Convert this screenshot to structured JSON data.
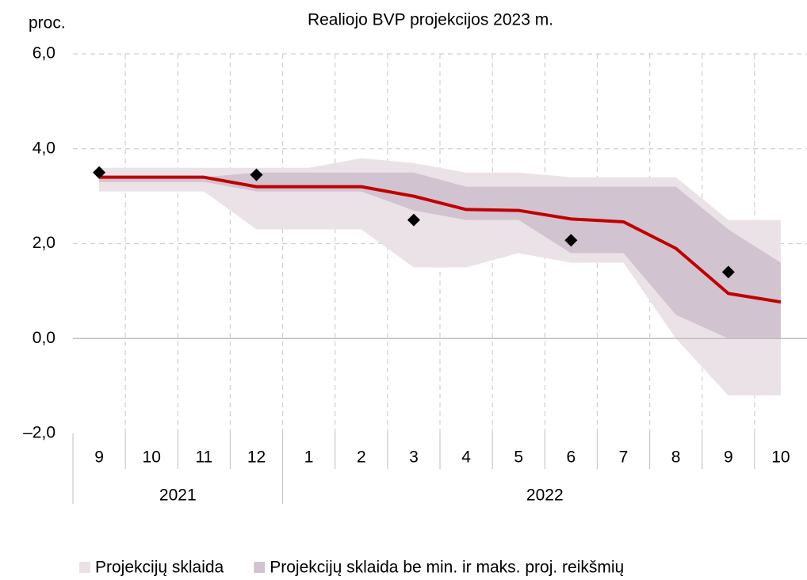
{
  "chart_data": {
    "type": "fan",
    "title": "Realiojo BVP projekcijos 2023 m.",
    "y_label": "proc.",
    "categories": [
      "9",
      "10",
      "11",
      "12",
      "1",
      "2",
      "3",
      "4",
      "5",
      "6",
      "7",
      "8",
      "9",
      "10"
    ],
    "groups": [
      {
        "label": "2021",
        "span": 4
      },
      {
        "label": "2022",
        "span": 10
      }
    ],
    "series": [
      {
        "name": "Projekcijų sklaida",
        "color": "#ebe2e7",
        "low": [
          3.1,
          3.1,
          3.1,
          2.3,
          2.3,
          2.3,
          1.5,
          1.5,
          1.8,
          1.6,
          1.6,
          0.0,
          -1.2,
          -1.2
        ],
        "high": [
          3.6,
          3.6,
          3.6,
          3.6,
          3.6,
          3.8,
          3.7,
          3.5,
          3.5,
          3.4,
          3.4,
          3.4,
          2.5,
          2.5
        ]
      },
      {
        "name": "Projekcijų sklaida be min. ir maks. proj. reikšmių",
        "color": "#d2c3d0",
        "low": [
          3.3,
          3.3,
          3.3,
          3.1,
          3.1,
          3.1,
          2.7,
          2.5,
          2.5,
          1.8,
          1.8,
          0.5,
          0.0,
          0.0
        ],
        "high": [
          3.4,
          3.4,
          3.4,
          3.5,
          3.5,
          3.5,
          3.5,
          3.2,
          3.2,
          3.2,
          3.2,
          3.2,
          2.3,
          1.6
        ]
      }
    ],
    "line": {
      "color": "#c00000",
      "values": [
        3.4,
        3.4,
        3.4,
        3.2,
        3.2,
        3.2,
        3.0,
        2.72,
        2.7,
        2.52,
        2.46,
        1.9,
        0.95,
        0.77
      ]
    },
    "points": {
      "color": "#000000",
      "values": [
        3.5,
        null,
        null,
        3.45,
        null,
        null,
        2.5,
        null,
        null,
        2.07,
        null,
        null,
        1.4,
        null
      ]
    },
    "ylim": [
      -2,
      6
    ],
    "yticks": [
      {
        "value": -2,
        "label": "–2,0"
      },
      {
        "value": 0,
        "label": "0,0"
      },
      {
        "value": 2,
        "label": "2,0"
      },
      {
        "value": 4,
        "label": "4,0"
      },
      {
        "value": 6,
        "label": "6,0"
      }
    ],
    "grid": true
  }
}
